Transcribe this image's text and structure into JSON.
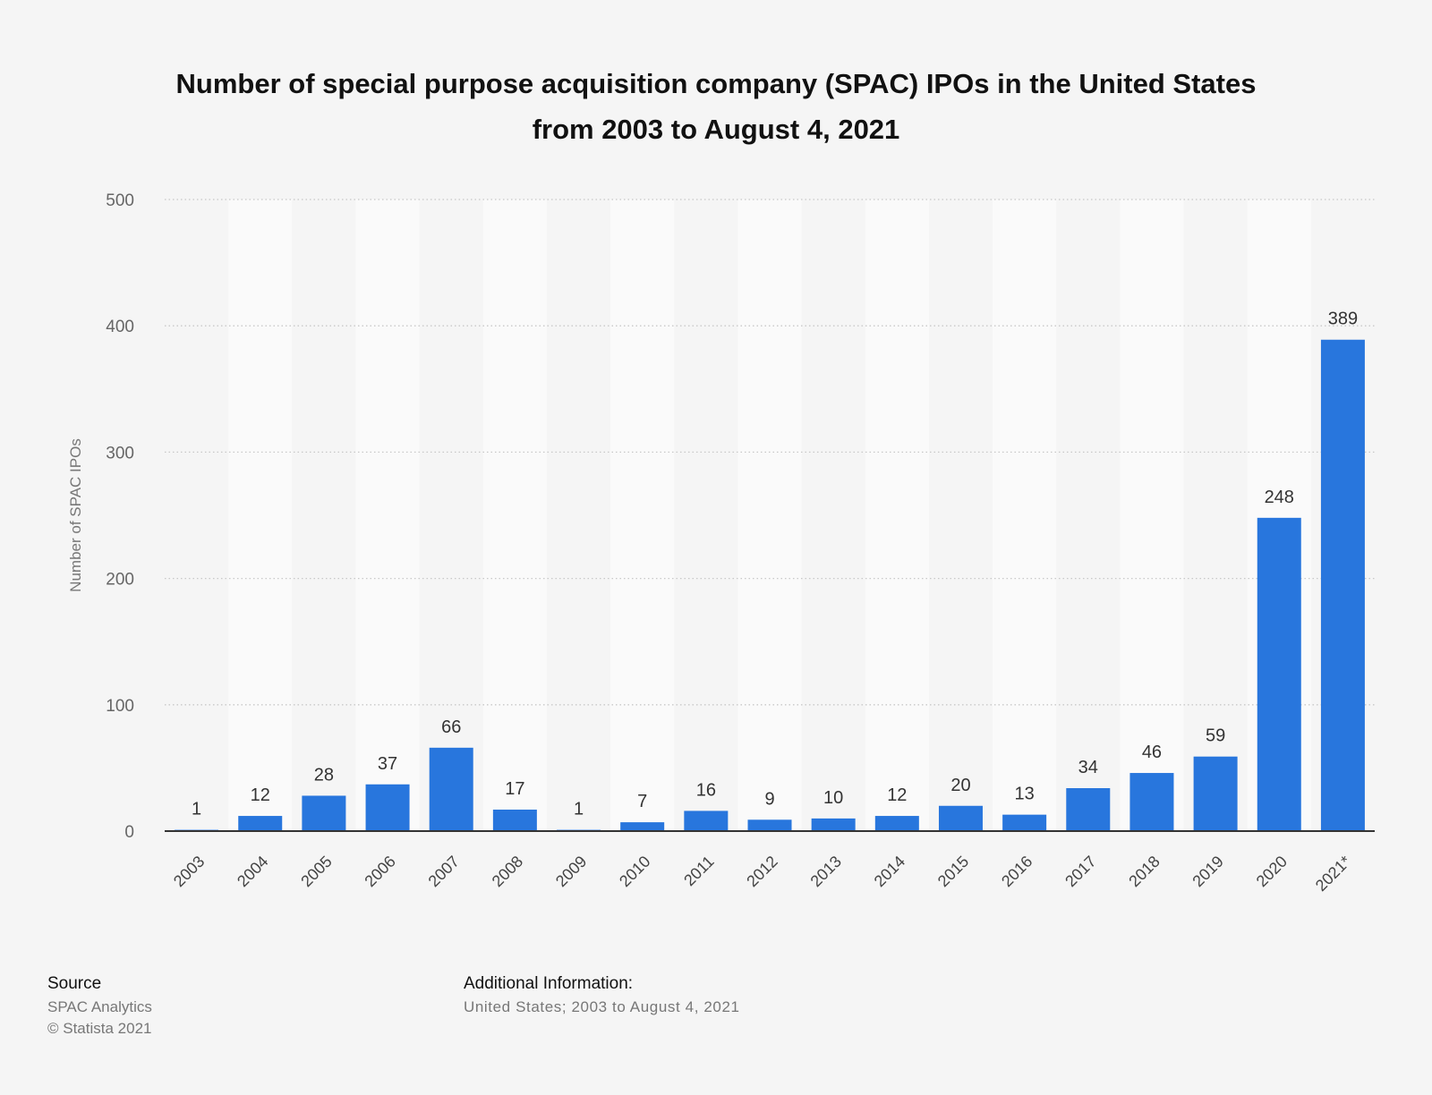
{
  "chart_data": {
    "type": "bar",
    "title": "Number of special purpose acquisition company (SPAC) IPOs in the United States from 2003 to August 4, 2021",
    "title_lines": [
      "Number of special purpose acquisition company (SPAC) IPOs in the United States",
      "from 2003 to August 4, 2021"
    ],
    "xlabel": "",
    "ylabel": "Number of SPAC IPOs",
    "ylim": [
      0,
      500
    ],
    "yticks": [
      0,
      100,
      200,
      300,
      400,
      500
    ],
    "grid": true,
    "categories": [
      "2003",
      "2004",
      "2005",
      "2006",
      "2007",
      "2008",
      "2009",
      "2010",
      "2011",
      "2012",
      "2013",
      "2014",
      "2015",
      "2016",
      "2017",
      "2018",
      "2019",
      "2020",
      "2021*"
    ],
    "values": [
      1,
      12,
      28,
      37,
      66,
      17,
      1,
      7,
      16,
      9,
      10,
      12,
      20,
      13,
      34,
      46,
      59,
      248,
      389
    ],
    "bar_color": "#2876dd"
  },
  "footer": {
    "source_heading": "Source",
    "source_name": "SPAC Analytics",
    "copyright": "© Statista 2021",
    "additional_heading": "Additional Information:",
    "additional_text": "United States; 2003 to August 4, 2021"
  }
}
